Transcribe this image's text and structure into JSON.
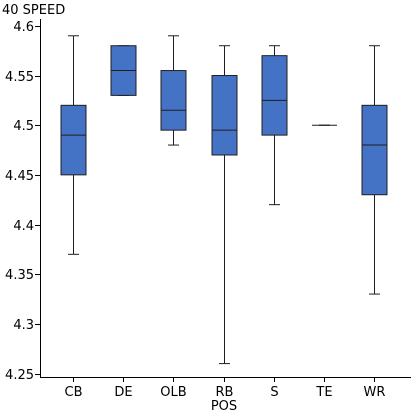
{
  "chart_data": {
    "type": "boxplot",
    "ylabel": "40 SPEED",
    "xlabel": "POS",
    "categories": [
      "CB",
      "DE",
      "OLB",
      "RB",
      "S",
      "TE",
      "WR"
    ],
    "boxes": [
      {
        "cat": "CB",
        "min": 4.37,
        "q1": 4.45,
        "median": 4.49,
        "q3": 4.52,
        "max": 4.59
      },
      {
        "cat": "DE",
        "min": 4.53,
        "q1": 4.53,
        "median": 4.555,
        "q3": 4.58,
        "max": 4.58
      },
      {
        "cat": "OLB",
        "min": 4.48,
        "q1": 4.495,
        "median": 4.515,
        "q3": 4.555,
        "max": 4.59
      },
      {
        "cat": "RB",
        "min": 4.26,
        "q1": 4.47,
        "median": 4.495,
        "q3": 4.55,
        "max": 4.58
      },
      {
        "cat": "S",
        "min": 4.42,
        "q1": 4.49,
        "median": 4.525,
        "q3": 4.57,
        "max": 4.58
      },
      {
        "cat": "TE",
        "min": 4.5,
        "q1": 4.5,
        "median": 4.5,
        "q3": 4.5,
        "max": 4.5
      },
      {
        "cat": "WR",
        "min": 4.33,
        "q1": 4.43,
        "median": 4.48,
        "q3": 4.52,
        "max": 4.58
      }
    ],
    "yticks": [
      "4.25",
      "4.3",
      "4.35",
      "4.4",
      "4.45",
      "4.5",
      "4.55",
      "4.6"
    ],
    "ylim": [
      4.2465,
      4.6069
    ],
    "grid": false,
    "box_color": "#4472c4",
    "box_edge_color": "#1f1f1f"
  }
}
